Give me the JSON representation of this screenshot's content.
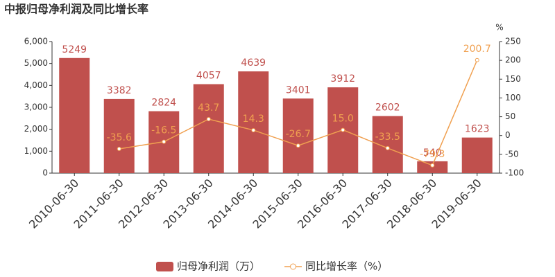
{
  "chart_data": {
    "type": "bar-line",
    "title": "中报归母净利润及同比增长率",
    "categories": [
      "2010-06-30",
      "2011-06-30",
      "2012-06-30",
      "2013-06-30",
      "2014-06-30",
      "2015-06-30",
      "2016-06-30",
      "2017-06-30",
      "2018-06-30",
      "2019-06-30"
    ],
    "series": [
      {
        "name": "归母净利润（万）",
        "type": "bar",
        "color": "#c0504d",
        "values": [
          5249,
          3382,
          2824,
          4057,
          4639,
          3401,
          3912,
          2602,
          540,
          1623
        ]
      },
      {
        "name": "同比增长率（%）",
        "type": "line",
        "axis": "y2",
        "color": "#f0a050",
        "values": [
          null,
          -35.6,
          -16.5,
          43.7,
          14.3,
          -26.7,
          15.0,
          -33.5,
          -79.3,
          200.7
        ],
        "value_labels": [
          null,
          "-35.6",
          "-16.5",
          "43.7",
          "14.3",
          "-26.7",
          "15.0",
          "-33.5",
          "-79.3",
          "200.7"
        ]
      }
    ],
    "ylim": [
      0,
      6000
    ],
    "yticks": [
      0,
      {
        "value": 1000,
        "label": "1,000"
      },
      {
        "value": 2000,
        "label": "2,000"
      },
      {
        "value": 3000,
        "label": "3,000"
      },
      {
        "value": 4000,
        "label": "4,000"
      },
      {
        "value": 5000,
        "label": "5,000"
      },
      {
        "value": 6000,
        "label": "6,000"
      }
    ],
    "y2_label": "%",
    "y2lim": [
      -100,
      250
    ],
    "y2ticks": [
      -100,
      -50,
      0,
      50,
      100,
      150,
      200,
      250
    ],
    "legend": "bottom"
  }
}
